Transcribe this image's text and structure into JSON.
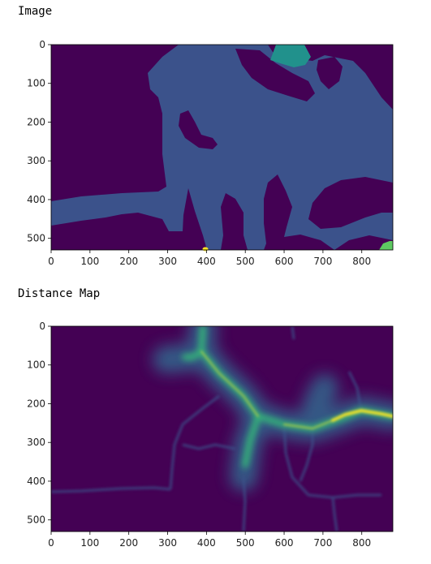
{
  "cells": [
    {
      "title": "Image"
    },
    {
      "title": "Distance Map"
    }
  ],
  "chart_data": [
    {
      "type": "heatmap",
      "title": "",
      "xlabel": "",
      "ylabel": "",
      "xlim": [
        0,
        880
      ],
      "ylim": [
        530,
        0
      ],
      "x_ticks": [
        0,
        100,
        200,
        300,
        400,
        500,
        600,
        700,
        800
      ],
      "y_ticks": [
        0,
        100,
        200,
        300,
        400,
        500
      ],
      "colormap": "viridis",
      "colors": {
        "background": "#440154",
        "region": "#3b528b",
        "top_blob": "#21918c",
        "corner_blob": "#5ec962",
        "dot": "#fde725"
      }
    },
    {
      "type": "heatmap",
      "title": "",
      "xlabel": "",
      "ylabel": "",
      "xlim": [
        0,
        880
      ],
      "ylim": [
        530,
        0
      ],
      "x_ticks": [
        0,
        100,
        200,
        300,
        400,
        500,
        600,
        700,
        800
      ],
      "y_ticks": [
        0,
        100,
        200,
        300,
        400,
        500
      ],
      "colormap": "viridis",
      "colors": {
        "low": "#440154",
        "mid": "#31688e",
        "mid_high": "#35b779",
        "high": "#fde725"
      }
    }
  ]
}
